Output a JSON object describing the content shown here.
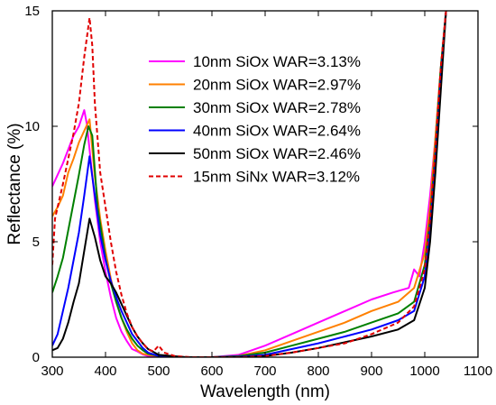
{
  "chart_data": {
    "type": "line",
    "title": "",
    "xlabel": "Wavelength (nm)",
    "ylabel": "Reflectance (%)",
    "xlim": [
      300,
      1100
    ],
    "ylim": [
      0,
      15
    ],
    "xticks": [
      300,
      400,
      500,
      600,
      700,
      800,
      900,
      1000,
      1100
    ],
    "yticks": [
      0,
      5,
      10,
      15
    ],
    "grid": false,
    "legend_position": "top-right",
    "series": [
      {
        "name": "10nm SiOx WAR=3.13%",
        "color": "#ff00ff",
        "dash": "solid",
        "points": [
          [
            300,
            7.4
          ],
          [
            310,
            7.9
          ],
          [
            320,
            8.4
          ],
          [
            330,
            9.0
          ],
          [
            340,
            9.6
          ],
          [
            350,
            10.0
          ],
          [
            360,
            10.7
          ],
          [
            365,
            10.1
          ],
          [
            370,
            9.0
          ],
          [
            380,
            6.8
          ],
          [
            390,
            5.0
          ],
          [
            400,
            3.7
          ],
          [
            410,
            2.6
          ],
          [
            420,
            1.7
          ],
          [
            430,
            1.1
          ],
          [
            440,
            0.7
          ],
          [
            450,
            0.35
          ],
          [
            460,
            0.25
          ],
          [
            470,
            0.12
          ],
          [
            480,
            0.05
          ],
          [
            500,
            0.02
          ],
          [
            550,
            0.0
          ],
          [
            600,
            0.0
          ],
          [
            650,
            0.1
          ],
          [
            700,
            0.5
          ],
          [
            750,
            1.0
          ],
          [
            800,
            1.5
          ],
          [
            850,
            2.0
          ],
          [
            900,
            2.5
          ],
          [
            940,
            2.8
          ],
          [
            970,
            3.0
          ],
          [
            980,
            3.8
          ],
          [
            990,
            3.5
          ],
          [
            1000,
            5.0
          ],
          [
            1010,
            7.0
          ],
          [
            1020,
            9.5
          ],
          [
            1030,
            12.5
          ],
          [
            1040,
            15.0
          ]
        ]
      },
      {
        "name": "20nm SiOx WAR=2.97%",
        "color": "#ff8000",
        "dash": "solid",
        "points": [
          [
            300,
            6.1
          ],
          [
            310,
            6.5
          ],
          [
            320,
            7.0
          ],
          [
            330,
            8.0
          ],
          [
            340,
            8.6
          ],
          [
            350,
            9.3
          ],
          [
            360,
            9.8
          ],
          [
            370,
            10.3
          ],
          [
            380,
            7.8
          ],
          [
            390,
            6.0
          ],
          [
            400,
            4.6
          ],
          [
            410,
            3.4
          ],
          [
            420,
            2.4
          ],
          [
            430,
            1.7
          ],
          [
            440,
            1.1
          ],
          [
            450,
            0.6
          ],
          [
            460,
            0.3
          ],
          [
            470,
            0.15
          ],
          [
            480,
            0.1
          ],
          [
            500,
            0.05
          ],
          [
            550,
            0.0
          ],
          [
            600,
            0.0
          ],
          [
            650,
            0.05
          ],
          [
            700,
            0.3
          ],
          [
            750,
            0.7
          ],
          [
            800,
            1.1
          ],
          [
            850,
            1.5
          ],
          [
            900,
            2.0
          ],
          [
            950,
            2.4
          ],
          [
            980,
            3.0
          ],
          [
            1000,
            4.5
          ],
          [
            1010,
            6.5
          ],
          [
            1020,
            9.5
          ],
          [
            1030,
            12.5
          ],
          [
            1040,
            15.0
          ]
        ]
      },
      {
        "name": "30nm SiOx WAR=2.78%",
        "color": "#008000",
        "dash": "solid",
        "points": [
          [
            300,
            2.8
          ],
          [
            310,
            3.5
          ],
          [
            320,
            4.3
          ],
          [
            330,
            5.5
          ],
          [
            340,
            6.7
          ],
          [
            350,
            7.9
          ],
          [
            360,
            9.2
          ],
          [
            368,
            10.0
          ],
          [
            375,
            9.6
          ],
          [
            385,
            6.5
          ],
          [
            400,
            4.3
          ],
          [
            410,
            3.2
          ],
          [
            420,
            2.4
          ],
          [
            430,
            1.7
          ],
          [
            440,
            1.2
          ],
          [
            450,
            0.8
          ],
          [
            460,
            0.5
          ],
          [
            470,
            0.3
          ],
          [
            480,
            0.15
          ],
          [
            500,
            0.05
          ],
          [
            550,
            0.0
          ],
          [
            600,
            0.0
          ],
          [
            650,
            0.05
          ],
          [
            700,
            0.2
          ],
          [
            750,
            0.5
          ],
          [
            800,
            0.8
          ],
          [
            850,
            1.1
          ],
          [
            900,
            1.5
          ],
          [
            950,
            1.9
          ],
          [
            980,
            2.4
          ],
          [
            1000,
            4.0
          ],
          [
            1010,
            6.0
          ],
          [
            1020,
            9.0
          ],
          [
            1030,
            12.5
          ],
          [
            1040,
            15.0
          ]
        ]
      },
      {
        "name": "40nm SiOx WAR=2.64%",
        "color": "#0000ff",
        "dash": "solid",
        "points": [
          [
            300,
            0.5
          ],
          [
            310,
            1.0
          ],
          [
            320,
            2.0
          ],
          [
            330,
            3.0
          ],
          [
            340,
            4.2
          ],
          [
            350,
            5.4
          ],
          [
            360,
            7.0
          ],
          [
            370,
            8.7
          ],
          [
            380,
            7.0
          ],
          [
            390,
            5.3
          ],
          [
            400,
            4.2
          ],
          [
            410,
            3.3
          ],
          [
            420,
            2.6
          ],
          [
            430,
            2.0
          ],
          [
            440,
            1.5
          ],
          [
            450,
            1.0
          ],
          [
            460,
            0.7
          ],
          [
            470,
            0.4
          ],
          [
            480,
            0.2
          ],
          [
            500,
            0.05
          ],
          [
            550,
            0.0
          ],
          [
            600,
            0.0
          ],
          [
            650,
            0.02
          ],
          [
            700,
            0.1
          ],
          [
            750,
            0.35
          ],
          [
            800,
            0.6
          ],
          [
            850,
            0.9
          ],
          [
            900,
            1.2
          ],
          [
            950,
            1.6
          ],
          [
            980,
            2.0
          ],
          [
            1000,
            3.5
          ],
          [
            1010,
            5.5
          ],
          [
            1020,
            8.5
          ],
          [
            1030,
            12.0
          ],
          [
            1040,
            15.0
          ]
        ]
      },
      {
        "name": "50nm SiOx WAR=2.46%",
        "color": "#000000",
        "dash": "solid",
        "points": [
          [
            300,
            0.3
          ],
          [
            310,
            0.4
          ],
          [
            320,
            0.8
          ],
          [
            330,
            1.5
          ],
          [
            340,
            2.4
          ],
          [
            350,
            3.2
          ],
          [
            360,
            4.6
          ],
          [
            370,
            6.0
          ],
          [
            380,
            5.2
          ],
          [
            390,
            4.2
          ],
          [
            400,
            3.5
          ],
          [
            410,
            3.2
          ],
          [
            420,
            2.8
          ],
          [
            430,
            2.3
          ],
          [
            440,
            1.8
          ],
          [
            450,
            1.3
          ],
          [
            460,
            0.9
          ],
          [
            470,
            0.6
          ],
          [
            480,
            0.35
          ],
          [
            500,
            0.1
          ],
          [
            550,
            0.0
          ],
          [
            600,
            0.0
          ],
          [
            650,
            0.0
          ],
          [
            700,
            0.05
          ],
          [
            750,
            0.2
          ],
          [
            800,
            0.4
          ],
          [
            850,
            0.65
          ],
          [
            900,
            0.9
          ],
          [
            950,
            1.2
          ],
          [
            980,
            1.6
          ],
          [
            1000,
            3.0
          ],
          [
            1010,
            5.0
          ],
          [
            1020,
            8.0
          ],
          [
            1030,
            11.5
          ],
          [
            1040,
            15.0
          ]
        ]
      },
      {
        "name": "15nm SiNx WAR=3.12%",
        "color": "#e00000",
        "dash": "dashed",
        "points": [
          [
            300,
            4.0
          ],
          [
            305,
            6.0
          ],
          [
            310,
            6.5
          ],
          [
            320,
            7.5
          ],
          [
            330,
            8.6
          ],
          [
            340,
            9.7
          ],
          [
            350,
            11.0
          ],
          [
            360,
            13.0
          ],
          [
            370,
            14.7
          ],
          [
            375,
            13.5
          ],
          [
            380,
            11.0
          ],
          [
            390,
            8.0
          ],
          [
            400,
            6.5
          ],
          [
            410,
            5.0
          ],
          [
            420,
            3.7
          ],
          [
            430,
            2.7
          ],
          [
            440,
            1.9
          ],
          [
            450,
            1.3
          ],
          [
            460,
            0.9
          ],
          [
            470,
            0.6
          ],
          [
            480,
            0.35
          ],
          [
            490,
            0.25
          ],
          [
            500,
            0.5
          ],
          [
            510,
            0.2
          ],
          [
            530,
            0.05
          ],
          [
            560,
            0.0
          ],
          [
            600,
            0.0
          ],
          [
            650,
            0.0
          ],
          [
            700,
            0.05
          ],
          [
            750,
            0.2
          ],
          [
            800,
            0.4
          ],
          [
            850,
            0.6
          ],
          [
            900,
            1.0
          ],
          [
            950,
            1.5
          ],
          [
            980,
            2.2
          ],
          [
            1000,
            3.8
          ],
          [
            1010,
            6.0
          ],
          [
            1020,
            9.0
          ],
          [
            1030,
            12.5
          ],
          [
            1040,
            15.0
          ]
        ]
      }
    ]
  }
}
